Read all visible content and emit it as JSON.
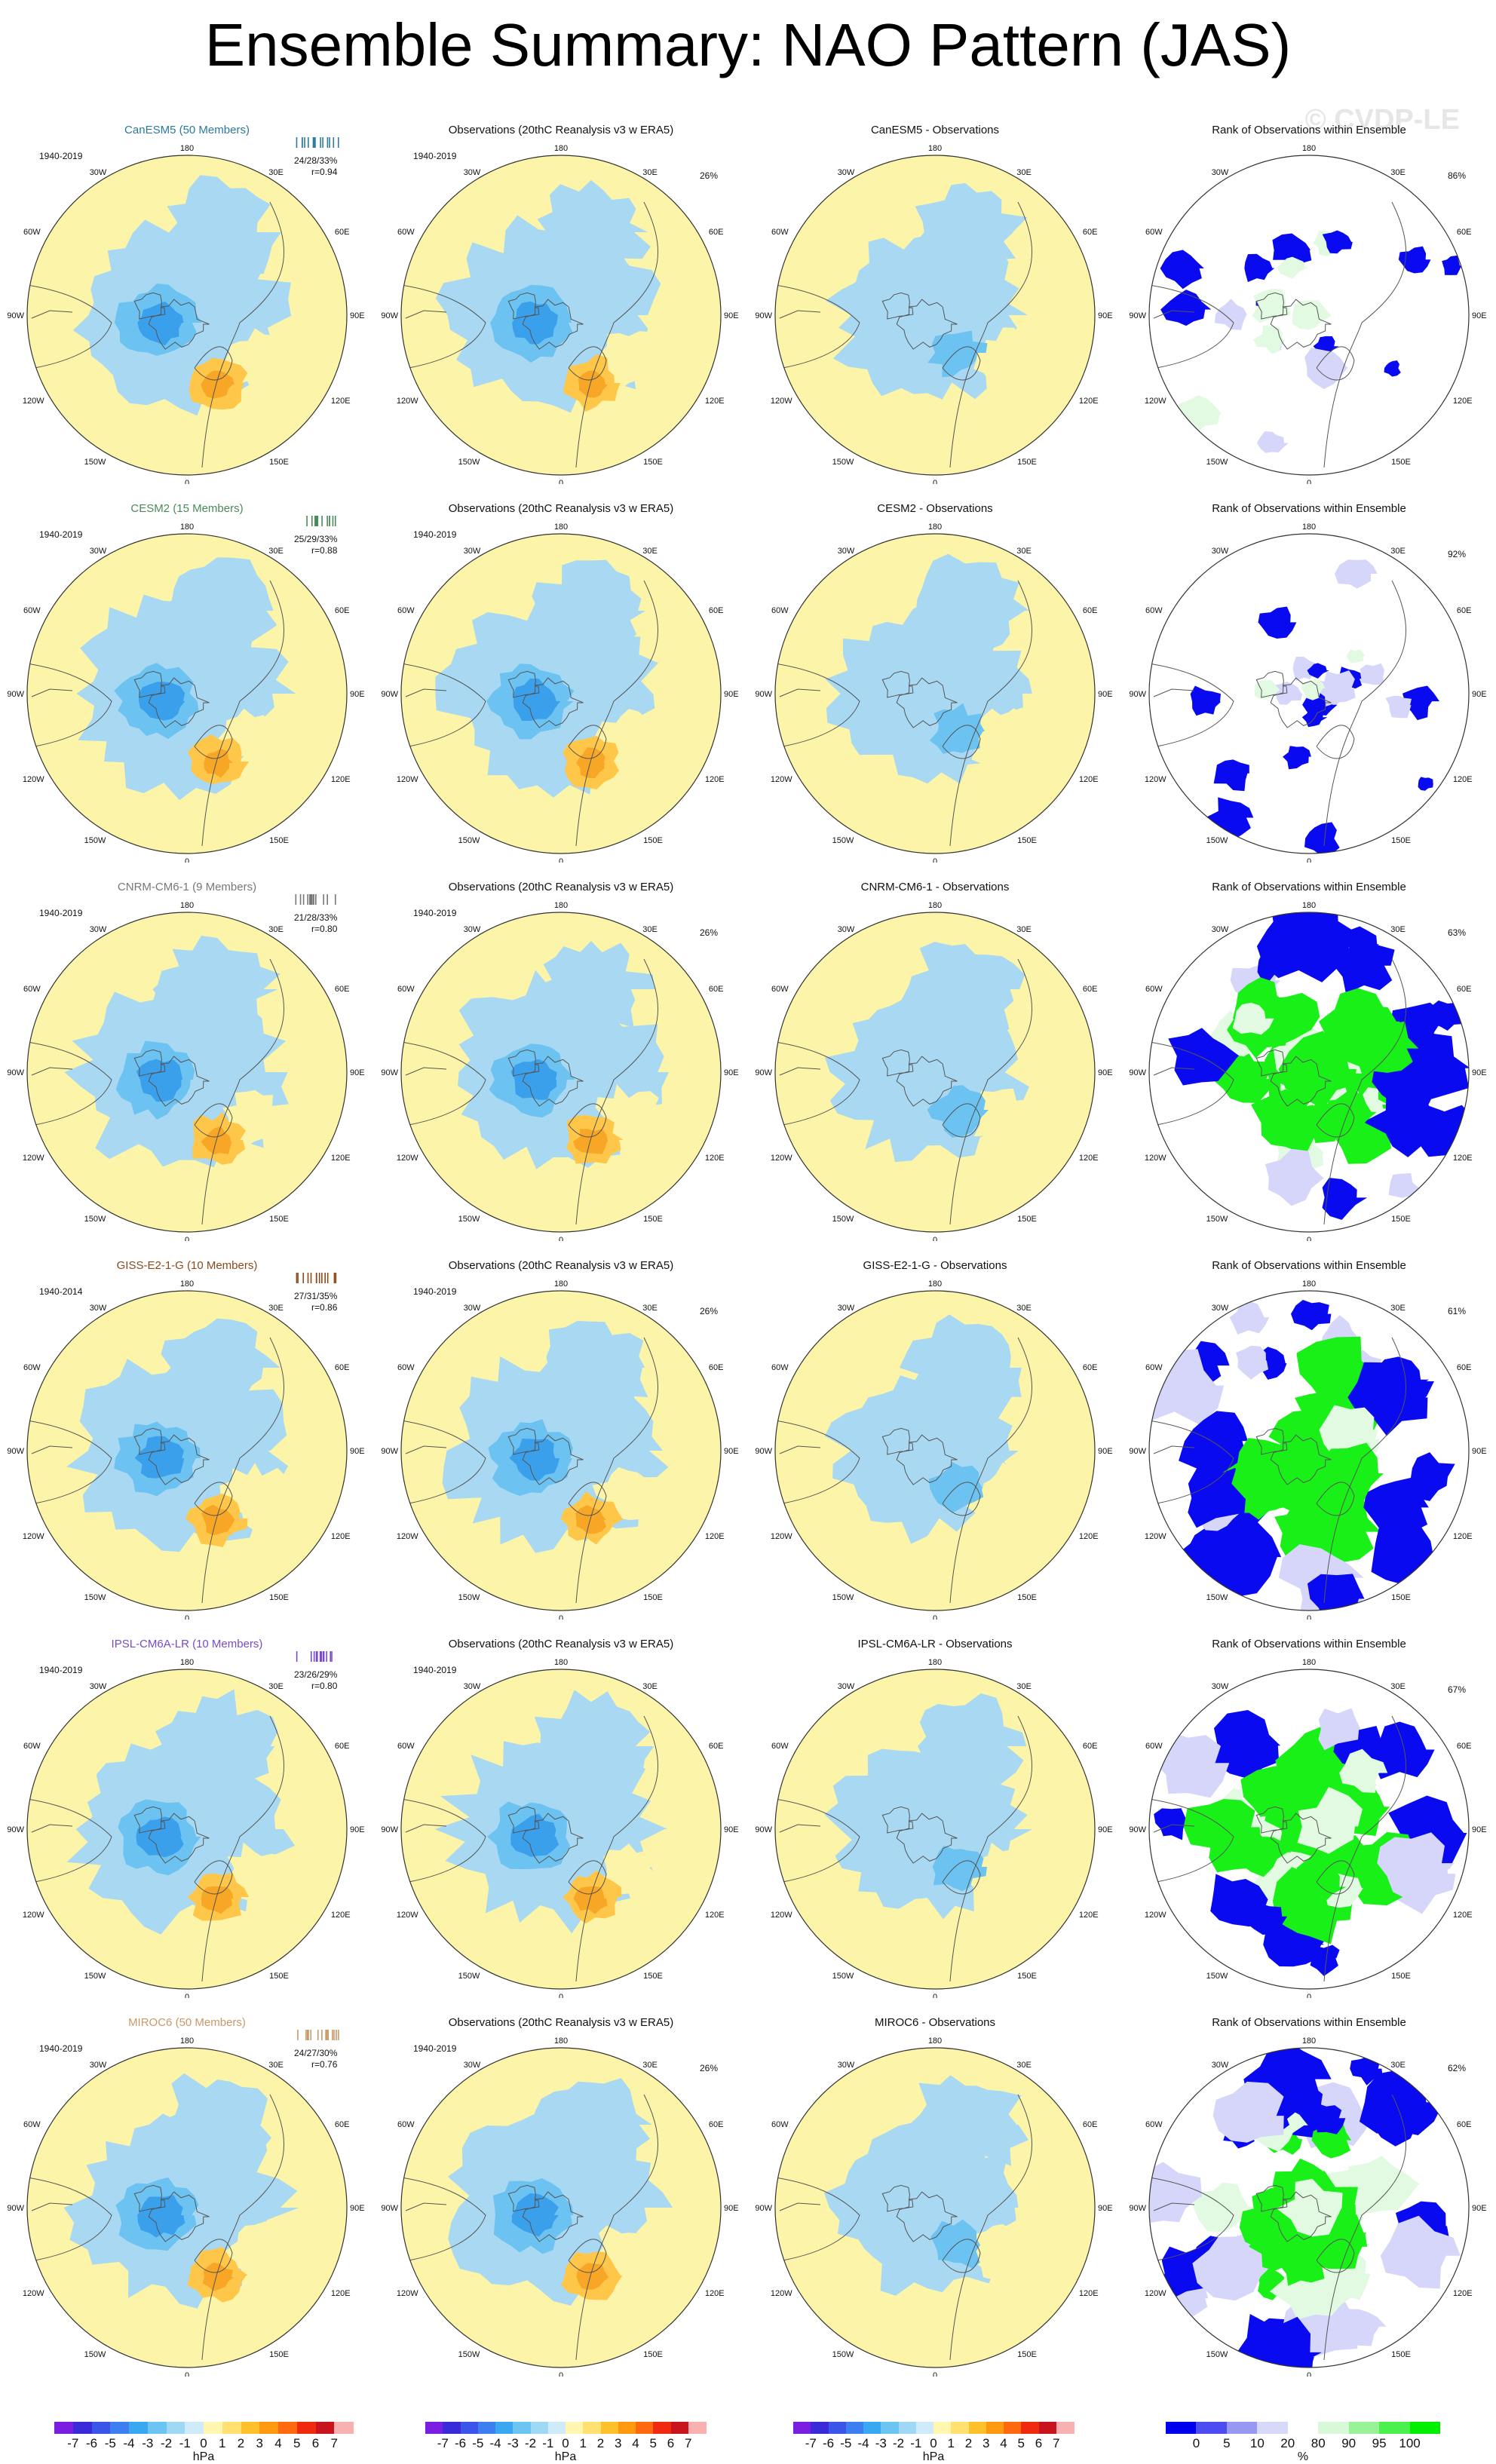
{
  "title": "Ensemble Summary: NAO Pattern (JAS)",
  "watermark": "© CVDP-LE",
  "rows": [
    {
      "model": "CanESM5 (50 Members)",
      "model_color": "#2a7aa0",
      "period": "1940-2019",
      "stats": "24/28/33%",
      "corr": "r=0.94",
      "obs_title": "Observations (20thC Reanalysis v3 w ERA5)",
      "obs_period": "1940-2019",
      "obs_pct": "26%",
      "diff_title": "CanESM5 - Observations",
      "rank_title": "Rank of Observations within Ensemble",
      "rank_pct": "86%",
      "rank_level": "low"
    },
    {
      "model": "CESM2 (15 Members)",
      "model_color": "#4a8a5a",
      "period": "1940-2019",
      "stats": "25/29/33%",
      "corr": "r=0.88",
      "obs_title": "Observations (20thC Reanalysis v3 w ERA5)",
      "obs_period": "1940-2019",
      "obs_pct": "",
      "diff_title": "CESM2 - Observations",
      "rank_title": "Rank of Observations within Ensemble",
      "rank_pct": "92%",
      "rank_level": "low"
    },
    {
      "model": "CNRM-CM6-1 (9 Members)",
      "model_color": "#777777",
      "period": "1940-2019",
      "stats": "21/28/33%",
      "corr": "r=0.80",
      "obs_title": "Observations (20thC Reanalysis v3 w ERA5)",
      "obs_period": "1940-2019",
      "obs_pct": "26%",
      "diff_title": "CNRM-CM6-1 - Observations",
      "rank_title": "Rank of Observations within Ensemble",
      "rank_pct": "63%",
      "rank_level": "high"
    },
    {
      "model": "GISS-E2-1-G (10 Members)",
      "model_color": "#8a4a1a",
      "period": "1940-2014",
      "stats": "27/31/35%",
      "corr": "r=0.86",
      "obs_title": "Observations (20thC Reanalysis v3 w ERA5)",
      "obs_period": "1940-2019",
      "obs_pct": "26%",
      "diff_title": "GISS-E2-1-G - Observations",
      "rank_title": "Rank of Observations within Ensemble",
      "rank_pct": "61%",
      "rank_level": "high"
    },
    {
      "model": "IPSL-CM6A-LR (10 Members)",
      "model_color": "#7a4ac8",
      "period": "1940-2019",
      "stats": "23/26/29%",
      "corr": "r=0.80",
      "obs_title": "Observations (20thC Reanalysis v3 w ERA5)",
      "obs_period": "1940-2019",
      "obs_pct": "",
      "diff_title": "IPSL-CM6A-LR - Observations",
      "rank_title": "Rank of Observations within Ensemble",
      "rank_pct": "67%",
      "rank_level": "high"
    },
    {
      "model": "MIROC6 (50 Members)",
      "model_color": "#c89a6a",
      "period": "1940-2019",
      "stats": "24/27/30%",
      "corr": "r=0.76",
      "obs_title": "Observations (20thC Reanalysis v3 w ERA5)",
      "obs_period": "1940-2019",
      "obs_pct": "26%",
      "diff_title": "MIROC6 - Observations",
      "rank_title": "Rank of Observations within Ensemble",
      "rank_pct": "62%",
      "rank_level": "mid"
    }
  ],
  "map_labels": {
    "top": "180",
    "bottom": "0",
    "left": "90W",
    "right": "90E",
    "tl1": "150W",
    "tl2": "120W",
    "tr1": "150E",
    "tr2": "120E",
    "bl1": "30W",
    "bl2": "60W",
    "br1": "30E",
    "br2": "60E"
  },
  "colorbar_hpa": {
    "ticks": [
      "-7",
      "-6",
      "-5",
      "-4",
      "-3",
      "-2",
      "-1",
      "0",
      "1",
      "2",
      "3",
      "4",
      "5",
      "6",
      "7"
    ],
    "unit": "hPa",
    "colors": [
      "#7a1fe0",
      "#3a2bd8",
      "#3a55e8",
      "#3d7ef0",
      "#3aa8f0",
      "#6cc4f2",
      "#9fd8f4",
      "#cfeaf8",
      "#fff6b0",
      "#ffe070",
      "#ffc02a",
      "#ff9a10",
      "#ff6a10",
      "#f02a10",
      "#c8141c",
      "#f8b0b0"
    ]
  },
  "colorbar_rank": {
    "ticks": [
      "0",
      "5",
      "10",
      "20",
      "80",
      "90",
      "95",
      "100"
    ],
    "unit": "%",
    "colors": [
      "#0000ee",
      "#4c4cf0",
      "#9898f2",
      "#d8d8f8",
      "#ffffff",
      "#d8f8d8",
      "#98f298",
      "#4cf04c",
      "#00ee00"
    ]
  },
  "colors": {
    "pos_light": "#fcf4a8",
    "neg_light": "#a9d9f2",
    "neg_mid": "#6cc2f0",
    "neg_dark": "#3aa0ec",
    "pos_mid": "#ffc74a",
    "pos_dark": "#f7a626",
    "rank_blue": "#0a0af0",
    "rank_green": "#18f018",
    "rank_lightblue": "#d6d6fa",
    "rank_lightgreen": "#e2fae2"
  }
}
